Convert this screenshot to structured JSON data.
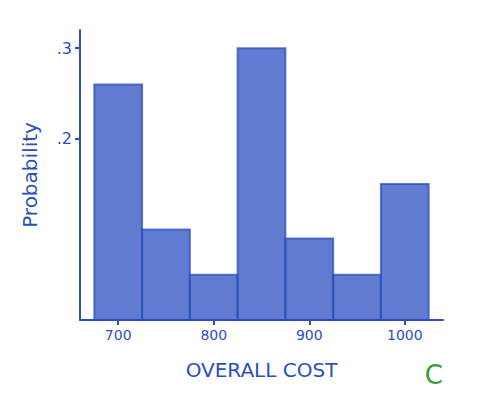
{
  "chart_data": {
    "type": "histogram",
    "x_label": "OVERALL COST",
    "y_label": "Probability",
    "annotation": "C",
    "bins": [
      675,
      725,
      775,
      825,
      875,
      925,
      975,
      1025
    ],
    "values": [
      0.26,
      0.1,
      0.05,
      0.3,
      0.09,
      0.05,
      0.15
    ],
    "color": "#2b4fc0",
    "xlim": [
      660,
      1040
    ],
    "xticks": [
      700,
      800,
      900,
      1000
    ],
    "ylim": [
      0,
      0.32
    ],
    "yticks": [
      {
        "value": 0.2,
        "label": ".2"
      },
      {
        "value": 0.3,
        "label": ".3"
      }
    ],
    "grid": false
  }
}
